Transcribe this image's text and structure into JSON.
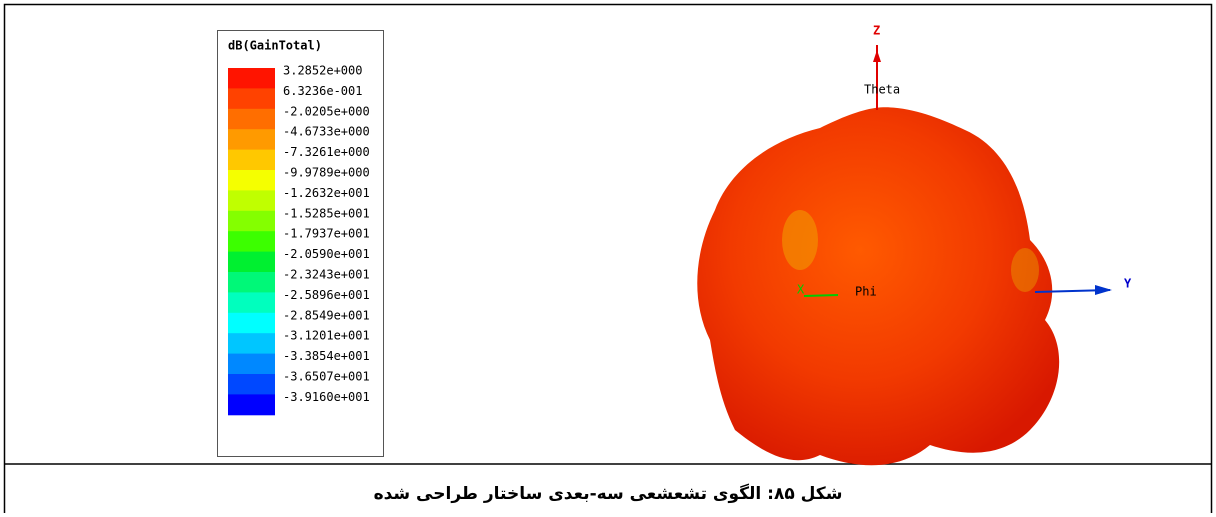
{
  "legend": {
    "title": "dB(GainTotal)",
    "entries": [
      {
        "label": "3.2852e+000",
        "color": "#ff1400"
      },
      {
        "label": "6.3236e-001",
        "color": "#ff4200"
      },
      {
        "label": "-2.0205e+000",
        "color": "#ff6e00"
      },
      {
        "label": "-4.6733e+000",
        "color": "#ff9a00"
      },
      {
        "label": "-7.3261e+000",
        "color": "#ffc800"
      },
      {
        "label": "-9.9789e+000",
        "color": "#f5ff00"
      },
      {
        "label": "-1.2632e+001",
        "color": "#c0ff00"
      },
      {
        "label": "-1.5285e+001",
        "color": "#84ff00"
      },
      {
        "label": "-1.7937e+001",
        "color": "#3cff00"
      },
      {
        "label": "-2.0590e+001",
        "color": "#00f030"
      },
      {
        "label": "-2.3243e+001",
        "color": "#00f878"
      },
      {
        "label": "-2.5896e+001",
        "color": "#00ffbe"
      },
      {
        "label": "-2.8549e+001",
        "color": "#00ffff"
      },
      {
        "label": "-3.1201e+001",
        "color": "#00c6ff"
      },
      {
        "label": "-3.3854e+001",
        "color": "#0088ff"
      },
      {
        "label": "-3.6507e+001",
        "color": "#0048ff"
      },
      {
        "label": "-3.9160e+001",
        "color": "#0000ff"
      }
    ]
  },
  "axes": {
    "z": "Z",
    "theta": "Theta",
    "y": "Y",
    "phi": "Phi",
    "x": "X"
  },
  "caption": "شکل ۸۵: الگوی تشعشعی سه-بعدی ساختار طراحی شده"
}
